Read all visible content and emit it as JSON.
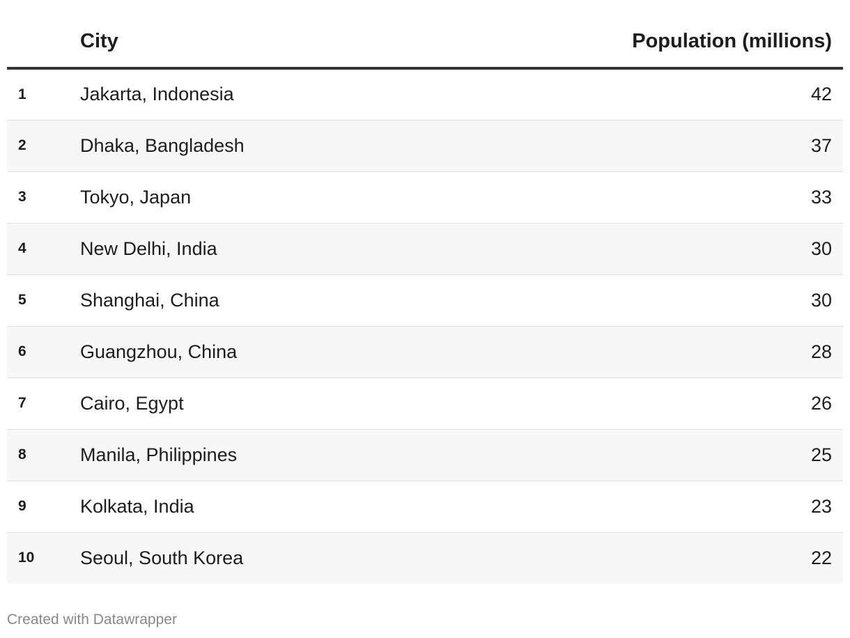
{
  "chart_data": {
    "type": "table",
    "columns": [
      "",
      "City",
      "Population (millions)"
    ],
    "rows": [
      {
        "rank": "1",
        "city": "Jakarta, Indonesia",
        "population": "42"
      },
      {
        "rank": "2",
        "city": "Dhaka, Bangladesh",
        "population": "37"
      },
      {
        "rank": "3",
        "city": "Tokyo, Japan",
        "population": "33"
      },
      {
        "rank": "4",
        "city": "New Delhi, India",
        "population": "30"
      },
      {
        "rank": "5",
        "city": "Shanghai, China",
        "population": "30"
      },
      {
        "rank": "6",
        "city": "Guangzhou, China",
        "population": "28"
      },
      {
        "rank": "7",
        "city": "Cairo, Egypt",
        "population": "26"
      },
      {
        "rank": "8",
        "city": "Manila, Philippines",
        "population": "25"
      },
      {
        "rank": "9",
        "city": "Kolkata, India",
        "population": "23"
      },
      {
        "rank": "10",
        "city": "Seoul, South Korea",
        "population": "22"
      }
    ]
  },
  "footer": {
    "credit": "Created with Datawrapper"
  },
  "colors": {
    "text": "#1d1d1d",
    "header_rule": "#333333",
    "row_stripe": "#f7f7f7",
    "row_divider": "#e0e0e0",
    "footer_text": "#888888"
  }
}
